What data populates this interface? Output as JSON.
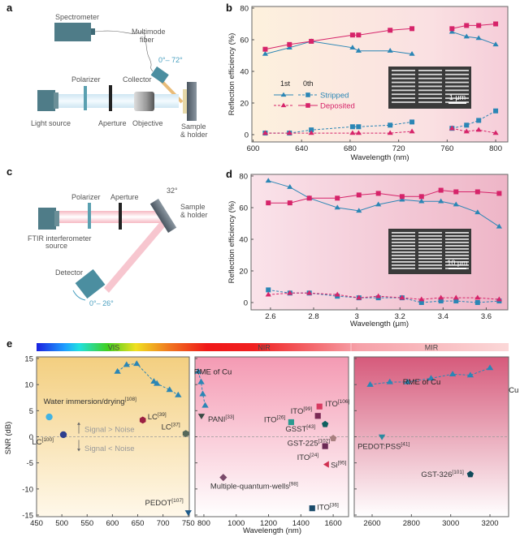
{
  "panels": {
    "a": {
      "letter": "a",
      "spectrometer": "Spectrometer",
      "fiber_line1": "Multimode",
      "fiber_line2": "fiber",
      "angle": "0°– 72°",
      "collector": "Collector",
      "polarizer": "Polarizer",
      "light_source": "Light source",
      "aperture": "Aperture",
      "objective": "Objective",
      "sample_line1": "Sample",
      "sample_line2": "& holder"
    },
    "c": {
      "letter": "c",
      "polarizer": "Polarizer",
      "aperture": "Aperture",
      "angle_top": "32°",
      "sample_line1": "Sample",
      "sample_line2": "& holder",
      "source_line1": "FTIR interferometer",
      "source_line2": "source",
      "detector": "Detector",
      "angle_bottom": "0°– 26°"
    }
  },
  "chart_data": [
    {
      "id": "b",
      "letter": "b",
      "type": "line",
      "xlabel": "Wavelength (nm)",
      "ylabel": "Reflection efficiency (%)",
      "xlim": [
        599,
        810
      ],
      "ylim": [
        0,
        80
      ],
      "xticks": [
        600,
        640,
        680,
        720,
        760,
        800
      ],
      "yticks": [
        0,
        20,
        40,
        60,
        80
      ],
      "inset_scale": "1 μm",
      "legend": {
        "col1": "1st",
        "col2": "0th",
        "row1": "Stripped",
        "row2": "Deposited"
      },
      "series": [
        {
          "name": "Stripped",
          "order": "1st",
          "color": "#2b86b5",
          "marker": "triangle",
          "dashed": false,
          "segments": [
            {
              "x": [
                610,
                630,
                648,
                682,
                687,
                713,
                731
              ],
              "y": [
                51,
                55,
                59,
                55,
                53,
                53,
                51
              ]
            },
            {
              "x": [
                764,
                776,
                786,
                800
              ],
              "y": [
                65,
                62,
                61,
                57
              ]
            }
          ]
        },
        {
          "name": "Deposited",
          "order": "0th",
          "color": "#d6246a",
          "marker": "square",
          "dashed": false,
          "segments": [
            {
              "x": [
                610,
                630,
                648,
                682,
                687,
                713,
                731
              ],
              "y": [
                54,
                57,
                59,
                63,
                63,
                66,
                67
              ]
            },
            {
              "x": [
                764,
                776,
                786,
                800
              ],
              "y": [
                67,
                69,
                69,
                70
              ]
            }
          ]
        },
        {
          "name": "Stripped",
          "order": "0th",
          "color": "#2b86b5",
          "marker": "square",
          "dashed": true,
          "segments": [
            {
              "x": [
                610,
                630,
                648,
                682,
                687,
                713,
                731
              ],
              "y": [
                1,
                1,
                3,
                5,
                5,
                6,
                8
              ]
            },
            {
              "x": [
                764,
                776,
                786,
                800
              ],
              "y": [
                4,
                6,
                9,
                15
              ]
            }
          ]
        },
        {
          "name": "Deposited",
          "order": "1st",
          "color": "#d6246a",
          "marker": "triangle",
          "dashed": true,
          "segments": [
            {
              "x": [
                610,
                630,
                648,
                682,
                687,
                713,
                731
              ],
              "y": [
                1,
                1,
                1,
                1,
                1,
                1,
                2
              ]
            },
            {
              "x": [
                764,
                776,
                786,
                800
              ],
              "y": [
                4,
                2,
                3,
                1
              ]
            }
          ]
        }
      ]
    },
    {
      "id": "d",
      "letter": "d",
      "type": "line",
      "xlabel": "Wavelength (μm)",
      "ylabel": "Reflection efficiency (%)",
      "xlim": [
        2.51,
        3.7
      ],
      "ylim": [
        0,
        80
      ],
      "xticks": [
        2.6,
        2.8,
        3.0,
        3.2,
        3.4,
        3.6
      ],
      "yticks": [
        0,
        20,
        40,
        60,
        80
      ],
      "inset_scale": "10 μm",
      "series": [
        {
          "name": "Stripped",
          "order": "1st",
          "color": "#2b86b5",
          "marker": "triangle",
          "dashed": false,
          "segments": [
            {
              "x": [
                2.59,
                2.69,
                2.78,
                2.91,
                3.01,
                3.1,
                3.21,
                3.3,
                3.39,
                3.46,
                3.56,
                3.66
              ],
              "y": [
                77,
                73,
                66,
                60,
                58,
                62,
                65,
                64,
                64,
                62,
                57,
                48
              ]
            }
          ]
        },
        {
          "name": "Deposited",
          "order": "0th",
          "color": "#d6246a",
          "marker": "square",
          "dashed": false,
          "segments": [
            {
              "x": [
                2.59,
                2.69,
                2.78,
                2.91,
                3.01,
                3.1,
                3.21,
                3.3,
                3.39,
                3.46,
                3.56,
                3.66
              ],
              "y": [
                63,
                63,
                66,
                66,
                68,
                69,
                67,
                67,
                71,
                70,
                70,
                69
              ]
            }
          ]
        },
        {
          "name": "Stripped",
          "order": "0th",
          "color": "#2b86b5",
          "marker": "square",
          "dashed": true,
          "segments": [
            {
              "x": [
                2.59,
                2.69,
                2.78,
                2.91,
                3.01,
                3.1,
                3.21,
                3.3,
                3.39,
                3.46,
                3.56,
                3.66
              ],
              "y": [
                8,
                6,
                6,
                4,
                3,
                3,
                3,
                0,
                1,
                1,
                0,
                1
              ]
            }
          ]
        },
        {
          "name": "Deposited",
          "order": "1st",
          "color": "#d6246a",
          "marker": "triangle",
          "dashed": true,
          "segments": [
            {
              "x": [
                2.59,
                2.69,
                2.78,
                2.91,
                3.01,
                3.1,
                3.21,
                3.3,
                3.39,
                3.46,
                3.56,
                3.66
              ],
              "y": [
                5,
                6,
                6,
                5,
                3,
                4,
                3,
                2,
                3,
                3,
                3,
                2
              ]
            }
          ]
        }
      ]
    },
    {
      "id": "e",
      "letter": "e",
      "type": "scatter",
      "xlabel": "Wavelength (nm)",
      "ylabel": "SNR (dB)",
      "ylim": [
        -15,
        15
      ],
      "yticks": [
        -15,
        -10,
        -5,
        0,
        5,
        10,
        15
      ],
      "bands": [
        "VIS",
        "NIR",
        "MIR"
      ],
      "signal_above": "Signal > Noise",
      "signal_below": "Signal < Noise",
      "rme_label": "RME of Cu",
      "rme_color": "#2b86b5",
      "subpanels": [
        {
          "band": "VIS",
          "xlim": [
            450,
            752
          ],
          "xticks": [
            450,
            500,
            550,
            600,
            650,
            700,
            750
          ],
          "rme": {
            "x": [
              610,
              628,
              648,
              682,
              688,
              713,
              730
            ],
            "y": [
              12.5,
              13.8,
              14,
              10.6,
              10.2,
              9,
              8
            ]
          },
          "points": [
            {
              "label": "Water immersion/drying",
              "ref": "[108]",
              "x": 475,
              "y": 3.8,
              "marker": "circle",
              "color": "#41b3e3"
            },
            {
              "label": "LC",
              "ref": "[100]",
              "x": 503,
              "y": 0.4,
              "marker": "circle",
              "color": "#2e3f8f"
            },
            {
              "label": "LC",
              "ref": "[39]",
              "x": 660,
              "y": 3.2,
              "marker": "hexagon",
              "color": "#9b2043"
            },
            {
              "label": "LC",
              "ref": "[37]",
              "x": 745,
              "y": 0.6,
              "marker": "hexagon",
              "color": "#56685a"
            },
            {
              "label": "PEDOT",
              "ref": "[107]",
              "x": 750,
              "y": -14.5,
              "marker": "triangle-down",
              "color": "#1d5a8a"
            }
          ]
        },
        {
          "band": "NIR",
          "xlim": [
            745,
            1695
          ],
          "xticks": [
            800,
            1000,
            1200,
            1400,
            1600
          ],
          "rme": {
            "x": [
              765,
              783,
              793,
              808
            ],
            "y": [
              12.5,
              10.5,
              8.2,
              6
            ]
          },
          "points": [
            {
              "label": "PANI",
              "ref": "[33]",
              "x": 785,
              "y": 4,
              "marker": "triangle-down",
              "color": "#3a4a44"
            },
            {
              "label": "Multiple-quantum-wells",
              "ref": "[98]",
              "x": 920,
              "y": -7.8,
              "marker": "diamond",
              "color": "#7a4a6a"
            },
            {
              "label": "ITO",
              "ref": "[26]",
              "x": 1340,
              "y": 2.8,
              "marker": "square",
              "color": "#2a9a90"
            },
            {
              "label": "ITO",
              "ref": "[99]",
              "x": 1505,
              "y": 4,
              "marker": "square",
              "color": "#7a2a55"
            },
            {
              "label": "ITO",
              "ref": "[106]",
              "x": 1515,
              "y": 5.8,
              "marker": "square",
              "color": "#d83a60"
            },
            {
              "label": "GSST",
              "ref": "[43]",
              "x": 1550,
              "y": 2.4,
              "marker": "pentagon",
              "color": "#0f5f5f"
            },
            {
              "label": "GST-225",
              "ref": "[102]",
              "x": 1600,
              "y": -0.3,
              "marker": "pentagon",
              "color": "#a88080"
            },
            {
              "label": "ITO",
              "ref": "[24]",
              "x": 1550,
              "y": -1.8,
              "marker": "square",
              "color": "#6a2a55"
            },
            {
              "label": "Si",
              "ref": "[95]",
              "x": 1560,
              "y": -5.3,
              "marker": "triangle-left",
              "color": "#d03050"
            },
            {
              "label": "ITO",
              "ref": "[36]",
              "x": 1470,
              "y": -13.7,
              "marker": "square",
              "color": "#1a4a6a"
            }
          ]
        },
        {
          "band": "MIR",
          "xlim": [
            2509,
            3295
          ],
          "xticks": [
            2600,
            2800,
            3000,
            3200
          ],
          "rme": {
            "x": [
              2590,
              2690,
              2780,
              2900,
              3010,
              3100,
              3200
            ],
            "y": [
              10,
              10.5,
              10.5,
              11.2,
              12,
              11.8,
              13.2
            ]
          },
          "points": [
            {
              "label": "PEDOT:PSS",
              "ref": "[41]",
              "x": 2650,
              "y": 0,
              "marker": "triangle-down",
              "color": "#2a8aa0"
            },
            {
              "label": "GST-326",
              "ref": "[101]",
              "x": 3100,
              "y": -7.2,
              "marker": "pentagon",
              "color": "#0f4a5a"
            }
          ]
        }
      ]
    }
  ]
}
